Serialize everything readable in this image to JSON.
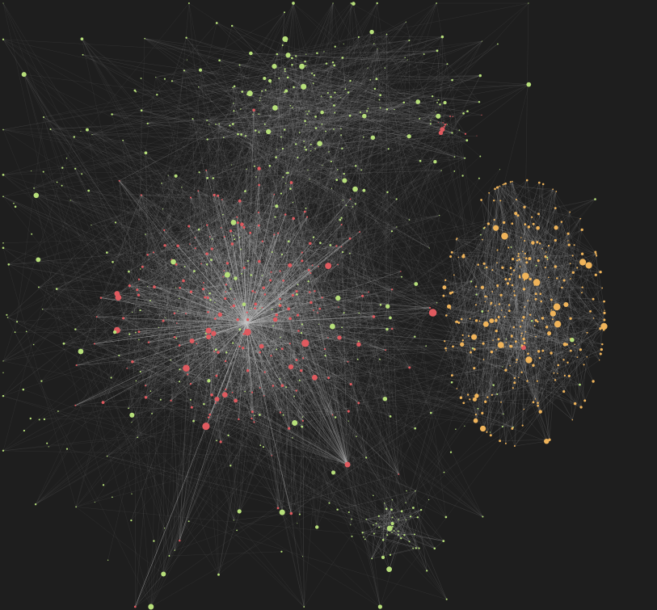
{
  "colors": {
    "background": "#1e1e1e",
    "edge": "#c9c9c9",
    "community_red": "#e05a5f",
    "community_green": "#b7e07a",
    "community_orange": "#f0b45a"
  },
  "graph": {
    "type": "force-directed network",
    "communities": [
      {
        "color_key": "community_red",
        "relative_node_count": 0.34
      },
      {
        "color_key": "community_green",
        "relative_node_count": 0.36
      },
      {
        "color_key": "community_orange",
        "relative_node_count": 0.3
      }
    ]
  }
}
